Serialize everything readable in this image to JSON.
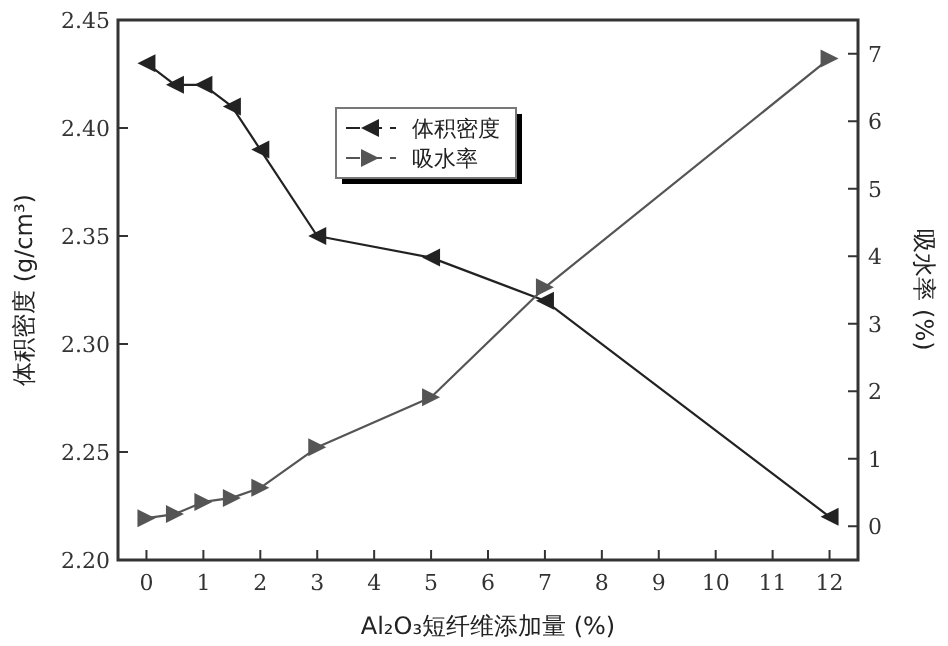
{
  "chart_data": {
    "type": "line",
    "xlabel": "Al₂O₃短纤维添加量 (%)",
    "ylabel": "体积密度 (g/cm³)",
    "y2label": "吸水率 (%)",
    "x": [
      0,
      0.5,
      1,
      1.5,
      2,
      3,
      5,
      7,
      12
    ],
    "xlim": [
      -0.5,
      12.5
    ],
    "xticks": [
      0,
      1,
      2,
      3,
      4,
      5,
      6,
      7,
      8,
      9,
      10,
      11,
      12
    ],
    "ylim": [
      2.2,
      2.45
    ],
    "yticks": [
      {
        "value": 2.2,
        "label": "2.20"
      },
      {
        "value": 2.25,
        "label": "2.25"
      },
      {
        "value": 2.3,
        "label": "2.30"
      },
      {
        "value": 2.35,
        "label": "2.35"
      },
      {
        "value": 2.4,
        "label": "2.40"
      },
      {
        "value": 2.45,
        "label": "2.45"
      }
    ],
    "y2lim": [
      -0.5,
      7.5
    ],
    "y2ticks": [
      0,
      1,
      2,
      3,
      4,
      5,
      6,
      7
    ],
    "legend": "top",
    "series": [
      {
        "name": "体积密度",
        "color": "#222222",
        "marker": "triangle-left",
        "values": [
          2.43,
          2.42,
          2.42,
          2.41,
          2.39,
          2.35,
          2.34,
          2.32,
          2.22
        ]
      },
      {
        "name": "吸水率",
        "color": "#555555",
        "marker": "triangle-right",
        "axis": "y2",
        "values": [
          0.12,
          0.18,
          0.36,
          0.42,
          0.57,
          1.17,
          1.91,
          3.54,
          6.93
        ]
      }
    ]
  }
}
